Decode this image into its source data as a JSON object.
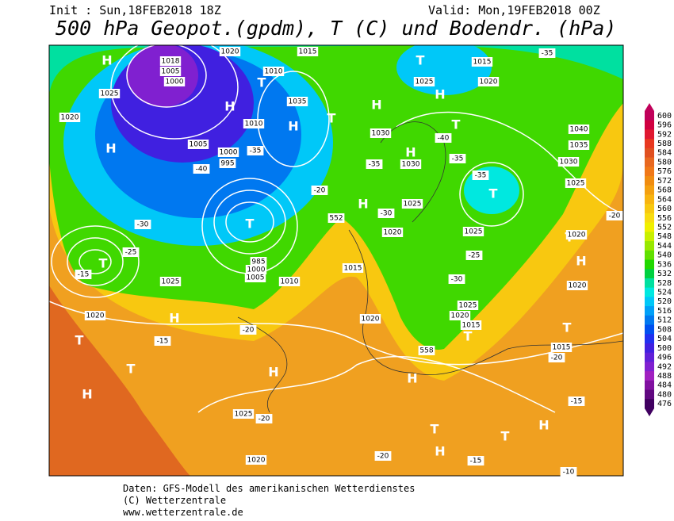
{
  "header": {
    "init": "Init : Sun,18FEB2018 18Z",
    "valid": "Valid: Mon,19FEB2018 00Z",
    "title": "500 hPa Geopot.(gpdm), T (C) und Bodendr. (hPa)"
  },
  "footer": [
    "Daten: GFS-Modell des amerikanischen Wetterdienstes",
    "(C) Wetterzentrale",
    "www.wetterzentrale.de"
  ],
  "colorbar": {
    "levels": [
      600,
      596,
      592,
      588,
      584,
      580,
      576,
      572,
      568,
      564,
      560,
      556,
      552,
      548,
      544,
      540,
      536,
      532,
      528,
      524,
      520,
      516,
      512,
      508,
      504,
      500,
      496,
      492,
      488,
      484,
      480,
      476
    ],
    "colors": [
      "#c0005a",
      "#d00040",
      "#e01830",
      "#e83820",
      "#e05020",
      "#e86820",
      "#f07818",
      "#f08c10",
      "#f4a010",
      "#f8b410",
      "#f8c810",
      "#f8dc10",
      "#f0f000",
      "#c8f000",
      "#98e800",
      "#60e000",
      "#20d800",
      "#00d040",
      "#00e0a0",
      "#00e8e0",
      "#00c8f8",
      "#00a0f8",
      "#0078f0",
      "#0050f0",
      "#2030f0",
      "#4020e0",
      "#6020d8",
      "#8020d0",
      "#a020c0",
      "#8010a0",
      "#600880",
      "#400060"
    ]
  },
  "map_labels": [
    "H",
    "H",
    "T",
    "1020",
    "1025",
    "1018",
    "1005",
    "1000",
    "H",
    "T",
    "1010",
    "1035",
    "1020",
    "1015",
    "H",
    "T",
    "1010",
    "1005",
    "1000",
    "995",
    "T",
    "985",
    "1000",
    "1005",
    "1010",
    "1025",
    "1020",
    "H",
    "T",
    "T",
    "H",
    "H",
    "1025",
    "1020",
    "H",
    "1030",
    "T",
    "1015",
    "1025",
    "1020",
    "H",
    "T",
    "H",
    "1030",
    "T",
    "1025",
    "H",
    "1020",
    "1025",
    "1015",
    "1020",
    "1025",
    "1020",
    "1015",
    "T",
    "H",
    "T",
    "H",
    "T",
    "H",
    "T",
    "1015",
    "H",
    "1020",
    "T",
    "1020",
    "1040",
    "1035",
    "1030",
    "1025",
    "552",
    "558",
    "-40",
    "-35",
    "-30",
    "-25",
    "-15",
    "-20",
    "-15",
    "-20",
    "-20",
    "-15",
    "-20",
    "-15",
    "-10",
    "-20",
    "-35",
    "-40",
    "-35",
    "-35",
    "-30",
    "-30",
    "-20",
    "-25",
    "-35"
  ]
}
